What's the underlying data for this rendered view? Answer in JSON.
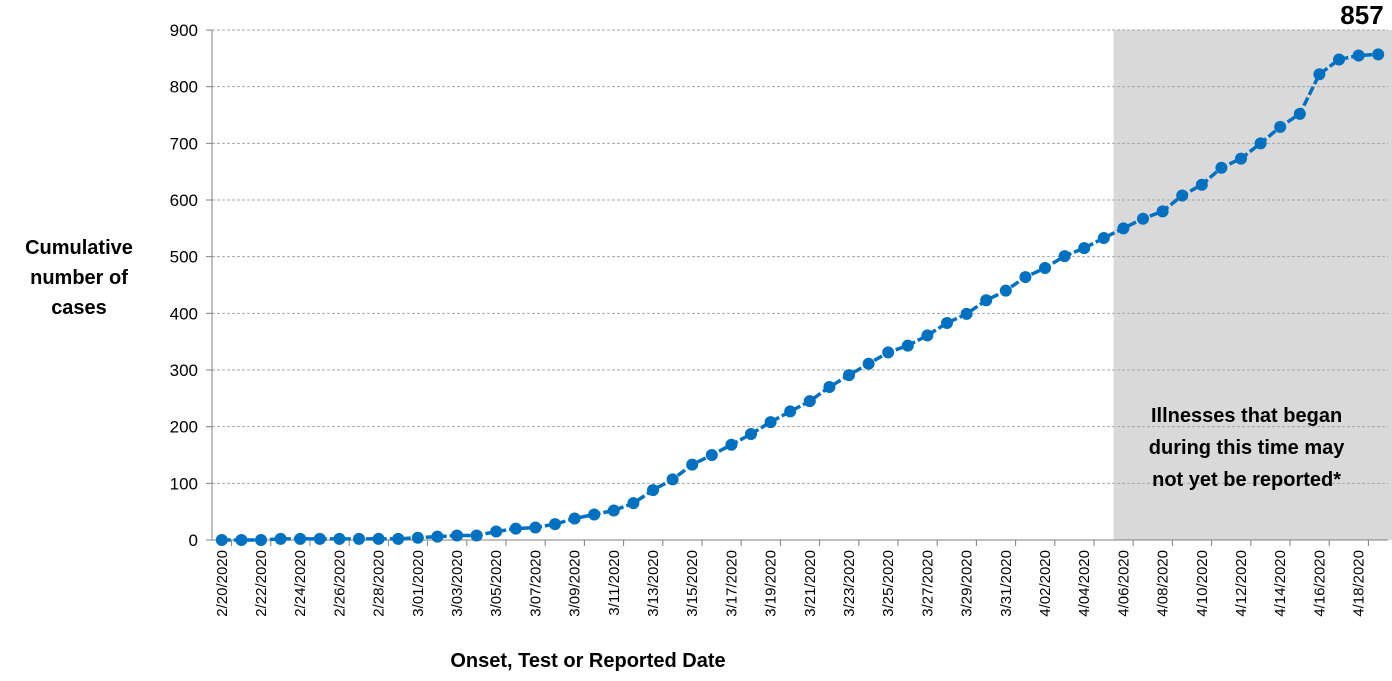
{
  "chart_data": {
    "type": "line",
    "xlabel": "Onset, Test or Reported Date",
    "ylabel": "Cumulative\nnumber of\ncases",
    "ylim": [
      0,
      900
    ],
    "yticks": [
      0,
      100,
      200,
      300,
      400,
      500,
      600,
      700,
      800,
      900
    ],
    "grid": true,
    "x_tick_labels": [
      "2/20/2020",
      "2/22/2020",
      "2/24/2020",
      "2/26/2020",
      "2/28/2020",
      "3/01/2020",
      "3/03/2020",
      "3/05/2020",
      "3/07/2020",
      "3/09/2020",
      "3/11/2020",
      "3/13/2020",
      "3/15/2020",
      "3/17/2020",
      "3/19/2020",
      "3/21/2020",
      "3/23/2020",
      "3/25/2020",
      "3/27/2020",
      "3/29/2020",
      "3/31/2020",
      "4/02/2020",
      "4/04/2020",
      "4/06/2020",
      "4/08/2020",
      "4/10/2020",
      "4/12/2020",
      "4/14/2020",
      "4/16/2020",
      "4/18/2020"
    ],
    "x_start": "2/20/2020",
    "x_end": "4/19/2020",
    "values": [
      0,
      0,
      0,
      2,
      2,
      2,
      2,
      2,
      2,
      2,
      4,
      6,
      8,
      8,
      15,
      20,
      22,
      28,
      38,
      45,
      52,
      65,
      88,
      107,
      133,
      150,
      168,
      187,
      208,
      227,
      245,
      270,
      291,
      311,
      331,
      343,
      361,
      383,
      399,
      423,
      440,
      464,
      480,
      501,
      515,
      533,
      550,
      567,
      580,
      608,
      627,
      657,
      673,
      700,
      729,
      752,
      822,
      848,
      855,
      857
    ],
    "shaded_region": {
      "start": "4/06/2020",
      "end": "4/19/2020",
      "annotation": [
        "Illnesses that began",
        "during this time may",
        "not yet be reported*"
      ]
    },
    "final_label": "857",
    "colors": {
      "line": "#0070C0",
      "shade": "#D9D9D9",
      "grid": "#A6A6A6"
    }
  }
}
